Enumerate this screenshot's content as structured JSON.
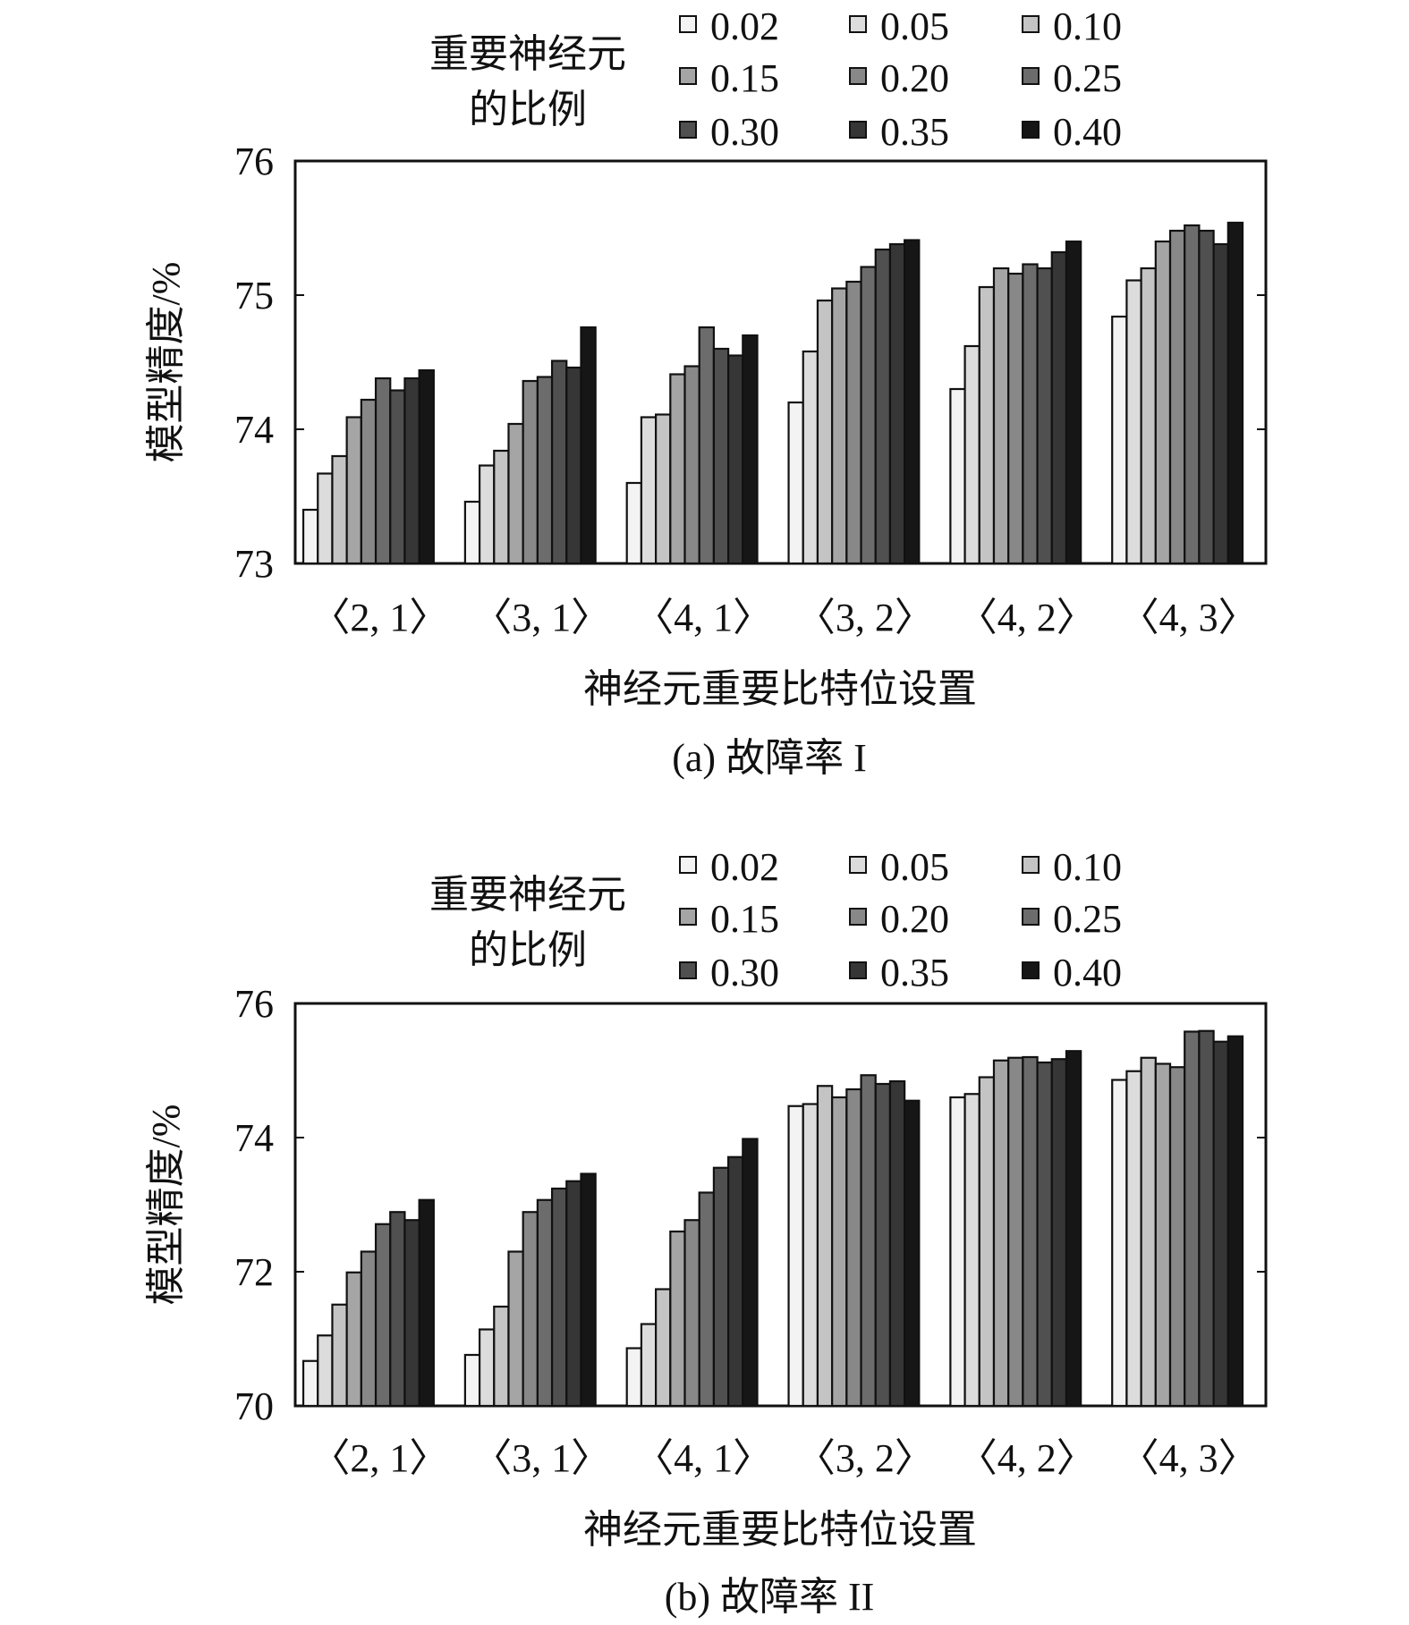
{
  "panels": [
    {
      "caption": "(a)  故障率 I",
      "legend_title_lines": [
        "重要神经元",
        "的比例"
      ],
      "xlabel": "神经元重要比特位设置",
      "ylabel": "模型精度/%",
      "yticks": [
        "73",
        "74",
        "75",
        "76"
      ]
    },
    {
      "caption": "(b)  故障率 II",
      "legend_title_lines": [
        "重要神经元",
        "的比例"
      ],
      "xlabel": "神经元重要比特位设置",
      "ylabel": "模型精度/%",
      "yticks": [
        "70",
        "72",
        "74",
        "76"
      ]
    }
  ],
  "chart_data": [
    {
      "type": "bar",
      "title": "",
      "xlabel": "神经元重要比特位设置",
      "ylabel": "模型精度/%",
      "ylim": [
        73,
        76
      ],
      "grid": false,
      "legend_title": "重要神经元的比例",
      "legend_position": "top",
      "categories": [
        "〈2, 1〉",
        "〈3, 1〉",
        "〈4, 1〉",
        "〈3, 2〉",
        "〈4, 2〉",
        "〈4, 3〉"
      ],
      "series": [
        {
          "name": "0.02",
          "color": "#f3f3f3",
          "values": [
            73.4,
            73.46,
            73.6,
            74.2,
            74.3,
            74.84
          ]
        },
        {
          "name": "0.05",
          "color": "#dcdcdc",
          "values": [
            73.67,
            73.73,
            74.09,
            74.58,
            74.62,
            75.11
          ]
        },
        {
          "name": "0.10",
          "color": "#c4c4c4",
          "values": [
            73.8,
            73.84,
            74.11,
            74.96,
            75.06,
            75.2
          ]
        },
        {
          "name": "0.15",
          "color": "#a5a5a5",
          "values": [
            74.09,
            74.04,
            74.41,
            75.05,
            75.2,
            75.4
          ]
        },
        {
          "name": "0.20",
          "color": "#888888",
          "values": [
            74.22,
            74.36,
            74.47,
            75.1,
            75.16,
            75.48
          ]
        },
        {
          "name": "0.25",
          "color": "#6c6c6c",
          "values": [
            74.38,
            74.39,
            74.76,
            75.21,
            75.23,
            75.52
          ]
        },
        {
          "name": "0.30",
          "color": "#505050",
          "values": [
            74.29,
            74.51,
            74.6,
            75.34,
            75.2,
            75.48
          ]
        },
        {
          "name": "0.35",
          "color": "#363636",
          "values": [
            74.38,
            74.46,
            74.55,
            75.38,
            75.32,
            75.38
          ]
        },
        {
          "name": "0.40",
          "color": "#161616",
          "values": [
            74.44,
            74.76,
            74.7,
            75.41,
            75.4,
            75.54
          ]
        }
      ]
    },
    {
      "type": "bar",
      "title": "",
      "xlabel": "神经元重要比特位设置",
      "ylabel": "模型精度/%",
      "ylim": [
        70,
        76
      ],
      "grid": false,
      "legend_title": "重要神经元的比例",
      "legend_position": "top",
      "categories": [
        "〈2, 1〉",
        "〈3, 1〉",
        "〈4, 1〉",
        "〈3, 2〉",
        "〈4, 2〉",
        "〈4, 3〉"
      ],
      "series": [
        {
          "name": "0.02",
          "color": "#f3f3f3",
          "values": [
            70.67,
            70.76,
            70.86,
            74.47,
            74.6,
            74.86
          ]
        },
        {
          "name": "0.05",
          "color": "#dcdcdc",
          "values": [
            71.05,
            71.14,
            71.22,
            74.5,
            74.65,
            74.99
          ]
        },
        {
          "name": "0.10",
          "color": "#c4c4c4",
          "values": [
            71.51,
            71.48,
            71.74,
            74.77,
            74.9,
            75.19
          ]
        },
        {
          "name": "0.15",
          "color": "#a5a5a5",
          "values": [
            71.99,
            72.3,
            72.6,
            74.6,
            75.15,
            75.1
          ]
        },
        {
          "name": "0.20",
          "color": "#888888",
          "values": [
            72.3,
            72.89,
            72.77,
            74.72,
            75.19,
            75.05
          ]
        },
        {
          "name": "0.25",
          "color": "#6c6c6c",
          "values": [
            72.71,
            73.07,
            73.18,
            74.93,
            75.2,
            75.58
          ]
        },
        {
          "name": "0.30",
          "color": "#505050",
          "values": [
            72.89,
            73.24,
            73.55,
            74.8,
            75.12,
            75.59
          ]
        },
        {
          "name": "0.35",
          "color": "#363636",
          "values": [
            72.77,
            73.35,
            73.71,
            74.84,
            75.17,
            75.43
          ]
        },
        {
          "name": "0.40",
          "color": "#161616",
          "values": [
            73.07,
            73.46,
            73.98,
            74.55,
            75.29,
            75.51
          ]
        }
      ]
    }
  ]
}
